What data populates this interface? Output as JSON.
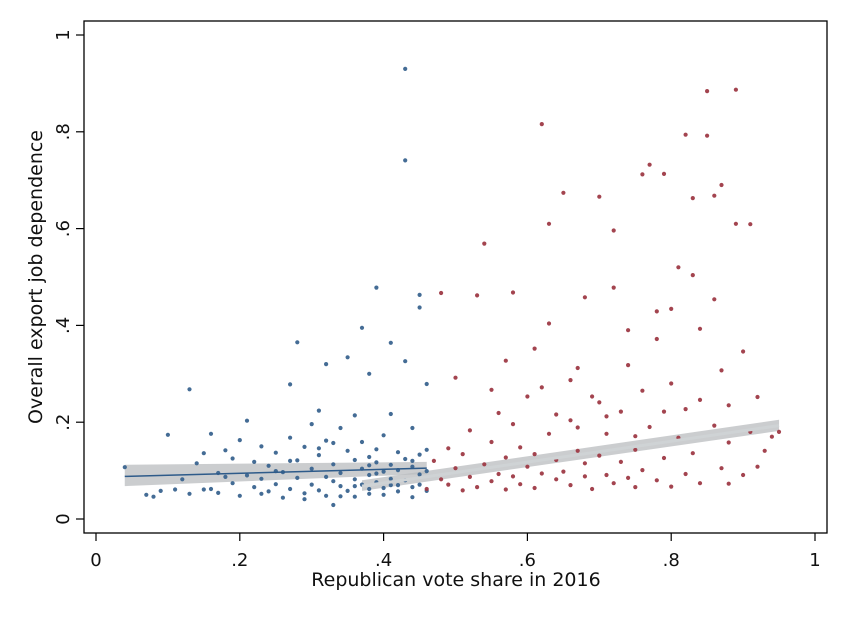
{
  "chart_data": {
    "type": "scatter",
    "title": "",
    "xlabel": "Republican vote share in 2016",
    "ylabel": "Overall export job dependence",
    "xlim": [
      0,
      1
    ],
    "ylim": [
      0,
      1
    ],
    "x_ticks": [
      {
        "value": 0,
        "label": "0"
      },
      {
        "value": 0.2,
        "label": ".2"
      },
      {
        "value": 0.4,
        "label": ".4"
      },
      {
        "value": 0.6,
        "label": ".6"
      },
      {
        "value": 0.8,
        "label": ".8"
      },
      {
        "value": 1,
        "label": "1"
      }
    ],
    "y_ticks": [
      {
        "value": 0,
        "label": "0"
      },
      {
        "value": 0.2,
        "label": ".2"
      },
      {
        "value": 0.4,
        "label": ".4"
      },
      {
        "value": 0.6,
        "label": ".6"
      },
      {
        "value": 0.8,
        "label": ".8"
      },
      {
        "value": 1,
        "label": "1"
      }
    ],
    "grid": false,
    "legend": "none",
    "colors": {
      "democratic_points": "#3a648f",
      "republican_points": "#9e3a46",
      "fit_band": "#b9bcbf",
      "democratic_fit_line": "#2e5b8a",
      "republican_fit_line": "#cfd3d5"
    },
    "series": [
      {
        "color_key": "democratic_points",
        "points": [
          [
            0.04,
            0.107
          ],
          [
            0.07,
            0.05
          ],
          [
            0.08,
            0.046
          ],
          [
            0.09,
            0.058
          ],
          [
            0.1,
            0.174
          ],
          [
            0.11,
            0.061
          ],
          [
            0.12,
            0.082
          ],
          [
            0.13,
            0.268
          ],
          [
            0.13,
            0.052
          ],
          [
            0.14,
            0.115
          ],
          [
            0.15,
            0.136
          ],
          [
            0.16,
            0.062
          ],
          [
            0.16,
            0.176
          ],
          [
            0.17,
            0.095
          ],
          [
            0.17,
            0.054
          ],
          [
            0.18,
            0.142
          ],
          [
            0.19,
            0.074
          ],
          [
            0.19,
            0.125
          ],
          [
            0.2,
            0.048
          ],
          [
            0.2,
            0.163
          ],
          [
            0.21,
            0.09
          ],
          [
            0.21,
            0.203
          ],
          [
            0.22,
            0.066
          ],
          [
            0.22,
            0.118
          ],
          [
            0.23,
            0.083
          ],
          [
            0.23,
            0.15
          ],
          [
            0.24,
            0.057
          ],
          [
            0.24,
            0.11
          ],
          [
            0.25,
            0.137
          ],
          [
            0.25,
            0.072
          ],
          [
            0.26,
            0.044
          ],
          [
            0.26,
            0.097
          ],
          [
            0.27,
            0.168
          ],
          [
            0.27,
            0.062
          ],
          [
            0.27,
            0.278
          ],
          [
            0.28,
            0.365
          ],
          [
            0.28,
            0.085
          ],
          [
            0.28,
            0.121
          ],
          [
            0.29,
            0.053
          ],
          [
            0.29,
            0.149
          ],
          [
            0.3,
            0.071
          ],
          [
            0.3,
            0.196
          ],
          [
            0.3,
            0.104
          ],
          [
            0.31,
            0.059
          ],
          [
            0.31,
            0.132
          ],
          [
            0.31,
            0.224
          ],
          [
            0.32,
            0.087
          ],
          [
            0.32,
            0.048
          ],
          [
            0.32,
            0.162
          ],
          [
            0.32,
            0.32
          ],
          [
            0.33,
            0.078
          ],
          [
            0.33,
            0.113
          ],
          [
            0.33,
            0.029
          ],
          [
            0.34,
            0.068
          ],
          [
            0.34,
            0.188
          ],
          [
            0.34,
            0.095
          ],
          [
            0.35,
            0.058
          ],
          [
            0.35,
            0.141
          ],
          [
            0.35,
            0.334
          ],
          [
            0.36,
            0.082
          ],
          [
            0.36,
            0.122
          ],
          [
            0.36,
            0.046
          ],
          [
            0.36,
            0.214
          ],
          [
            0.37,
            0.071
          ],
          [
            0.37,
            0.104
          ],
          [
            0.37,
            0.159
          ],
          [
            0.37,
            0.395
          ],
          [
            0.38,
            0.062
          ],
          [
            0.38,
            0.091
          ],
          [
            0.38,
            0.128
          ],
          [
            0.38,
            0.052
          ],
          [
            0.38,
            0.3
          ],
          [
            0.39,
            0.076
          ],
          [
            0.39,
            0.117
          ],
          [
            0.39,
            0.144
          ],
          [
            0.39,
            0.478
          ],
          [
            0.4,
            0.064
          ],
          [
            0.4,
            0.098
          ],
          [
            0.4,
            0.173
          ],
          [
            0.4,
            0.05
          ],
          [
            0.41,
            0.083
          ],
          [
            0.41,
            0.112
          ],
          [
            0.41,
            0.217
          ],
          [
            0.41,
            0.364
          ],
          [
            0.42,
            0.07
          ],
          [
            0.42,
            0.101
          ],
          [
            0.42,
            0.138
          ],
          [
            0.42,
            0.057
          ],
          [
            0.43,
            0.741
          ],
          [
            0.43,
            0.08
          ],
          [
            0.43,
            0.124
          ],
          [
            0.43,
            0.326
          ],
          [
            0.43,
            0.93
          ],
          [
            0.44,
            0.066
          ],
          [
            0.44,
            0.108
          ],
          [
            0.44,
            0.188
          ],
          [
            0.44,
            0.045
          ],
          [
            0.45,
            0.092
          ],
          [
            0.45,
            0.133
          ],
          [
            0.45,
            0.463
          ],
          [
            0.45,
            0.437
          ],
          [
            0.45,
            0.071
          ],
          [
            0.46,
            0.099
          ],
          [
            0.46,
            0.143
          ],
          [
            0.46,
            0.279
          ],
          [
            0.46,
            0.058
          ],
          [
            0.36,
            0.068
          ],
          [
            0.34,
            0.047
          ],
          [
            0.29,
            0.041
          ],
          [
            0.25,
            0.099
          ],
          [
            0.23,
            0.052
          ],
          [
            0.18,
            0.087
          ],
          [
            0.15,
            0.061
          ],
          [
            0.31,
            0.146
          ],
          [
            0.39,
            0.094
          ],
          [
            0.44,
            0.12
          ],
          [
            0.41,
            0.07
          ],
          [
            0.38,
            0.111
          ],
          [
            0.33,
            0.157
          ],
          [
            0.27,
            0.12
          ]
        ]
      },
      {
        "color_key": "republican_points",
        "points": [
          [
            0.46,
            0.062
          ],
          [
            0.47,
            0.12
          ],
          [
            0.48,
            0.082
          ],
          [
            0.48,
            0.467
          ],
          [
            0.49,
            0.146
          ],
          [
            0.49,
            0.071
          ],
          [
            0.5,
            0.105
          ],
          [
            0.5,
            0.292
          ],
          [
            0.51,
            0.059
          ],
          [
            0.51,
            0.134
          ],
          [
            0.52,
            0.087
          ],
          [
            0.52,
            0.183
          ],
          [
            0.53,
            0.462
          ],
          [
            0.53,
            0.066
          ],
          [
            0.54,
            0.113
          ],
          [
            0.54,
            0.569
          ],
          [
            0.55,
            0.078
          ],
          [
            0.55,
            0.159
          ],
          [
            0.56,
            0.093
          ],
          [
            0.56,
            0.219
          ],
          [
            0.57,
            0.061
          ],
          [
            0.57,
            0.127
          ],
          [
            0.58,
            0.468
          ],
          [
            0.58,
            0.088
          ],
          [
            0.59,
            0.148
          ],
          [
            0.59,
            0.072
          ],
          [
            0.6,
            0.108
          ],
          [
            0.6,
            0.253
          ],
          [
            0.61,
            0.064
          ],
          [
            0.61,
            0.134
          ],
          [
            0.62,
            0.816
          ],
          [
            0.62,
            0.094
          ],
          [
            0.63,
            0.176
          ],
          [
            0.63,
            0.61
          ],
          [
            0.64,
            0.082
          ],
          [
            0.64,
            0.122
          ],
          [
            0.65,
            0.674
          ],
          [
            0.65,
            0.098
          ],
          [
            0.66,
            0.204
          ],
          [
            0.66,
            0.07
          ],
          [
            0.67,
            0.141
          ],
          [
            0.67,
            0.312
          ],
          [
            0.68,
            0.088
          ],
          [
            0.68,
            0.115
          ],
          [
            0.69,
            0.253
          ],
          [
            0.69,
            0.062
          ],
          [
            0.7,
            0.131
          ],
          [
            0.7,
            0.666
          ],
          [
            0.71,
            0.091
          ],
          [
            0.71,
            0.176
          ],
          [
            0.72,
            0.074
          ],
          [
            0.72,
            0.596
          ],
          [
            0.73,
            0.118
          ],
          [
            0.73,
            0.222
          ],
          [
            0.74,
            0.085
          ],
          [
            0.74,
            0.39
          ],
          [
            0.75,
            0.143
          ],
          [
            0.75,
            0.066
          ],
          [
            0.76,
            0.712
          ],
          [
            0.76,
            0.101
          ],
          [
            0.77,
            0.732
          ],
          [
            0.77,
            0.19
          ],
          [
            0.78,
            0.08
          ],
          [
            0.78,
            0.429
          ],
          [
            0.79,
            0.126
          ],
          [
            0.79,
            0.713
          ],
          [
            0.8,
            0.067
          ],
          [
            0.8,
            0.28
          ],
          [
            0.81,
            0.168
          ],
          [
            0.81,
            0.52
          ],
          [
            0.82,
            0.093
          ],
          [
            0.82,
            0.794
          ],
          [
            0.83,
            0.136
          ],
          [
            0.83,
            0.663
          ],
          [
            0.84,
            0.074
          ],
          [
            0.84,
            0.393
          ],
          [
            0.85,
            0.884
          ],
          [
            0.85,
            0.792
          ],
          [
            0.86,
            0.668
          ],
          [
            0.86,
            0.193
          ],
          [
            0.87,
            0.69
          ],
          [
            0.87,
            0.105
          ],
          [
            0.88,
            0.235
          ],
          [
            0.88,
            0.073
          ],
          [
            0.89,
            0.61
          ],
          [
            0.89,
            0.887
          ],
          [
            0.9,
            0.346
          ],
          [
            0.9,
            0.091
          ],
          [
            0.91,
            0.609
          ],
          [
            0.91,
            0.18
          ],
          [
            0.92,
            0.252
          ],
          [
            0.92,
            0.108
          ],
          [
            0.93,
            0.141
          ],
          [
            0.94,
            0.17
          ],
          [
            0.95,
            0.18
          ],
          [
            0.57,
            0.327
          ],
          [
            0.63,
            0.404
          ],
          [
            0.68,
            0.458
          ],
          [
            0.72,
            0.478
          ],
          [
            0.78,
            0.372
          ],
          [
            0.83,
            0.504
          ],
          [
            0.86,
            0.454
          ],
          [
            0.55,
            0.267
          ],
          [
            0.61,
            0.352
          ],
          [
            0.66,
            0.287
          ],
          [
            0.74,
            0.318
          ],
          [
            0.8,
            0.434
          ],
          [
            0.87,
            0.307
          ],
          [
            0.64,
            0.216
          ],
          [
            0.7,
            0.241
          ],
          [
            0.76,
            0.265
          ],
          [
            0.82,
            0.227
          ],
          [
            0.58,
            0.196
          ],
          [
            0.62,
            0.272
          ],
          [
            0.67,
            0.189
          ],
          [
            0.71,
            0.212
          ],
          [
            0.75,
            0.171
          ],
          [
            0.79,
            0.222
          ],
          [
            0.84,
            0.246
          ],
          [
            0.88,
            0.158
          ]
        ]
      }
    ],
    "fit_lines": [
      {
        "color_key": "democratic_fit_line",
        "band_color_key": "fit_band",
        "x": [
          0.04,
          0.46
        ],
        "y": [
          0.088,
          0.105
        ],
        "ci_lower": [
          0.068,
          0.093
        ],
        "ci_upper": [
          0.112,
          0.118
        ]
      },
      {
        "color_key": "republican_fit_line",
        "band_color_key": "fit_band",
        "x": [
          0.37,
          0.95
        ],
        "y": [
          0.068,
          0.193
        ],
        "ci_lower": [
          0.058,
          0.182
        ],
        "ci_upper": [
          0.08,
          0.205
        ]
      }
    ]
  }
}
